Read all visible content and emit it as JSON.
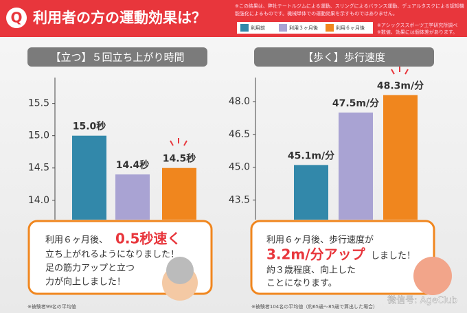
{
  "header": {
    "mark": "Q",
    "title": "利用者の方の運動効果は？",
    "notes": [
      "※この結果は、弊社テートルジムによる運動、スリングによるバランス運動、デュアルタスクによる認知機",
      "能強化によるものです。機械単体での運動効果を示すものではありません。"
    ],
    "sources": [
      "※アシックススポーツ工学研究所調べ",
      "※数値、効果には個体差があります。"
    ]
  },
  "legend": [
    {
      "name": "利用前",
      "color": "#3288aa"
    },
    {
      "name": "利用３ヶ月後",
      "color": "#a9a3d3"
    },
    {
      "name": "利用６ヶ月後",
      "color": "#f0861e"
    }
  ],
  "chart_data": [
    {
      "type": "bar",
      "title": "【立つ】５回立ち上がり時間",
      "values": [
        15.0,
        14.4,
        14.5
      ],
      "value_labels": [
        "15.0秒",
        "14.4秒",
        "14.5秒"
      ],
      "ylim": [
        13.7,
        15.9
      ],
      "yticks": [
        {
          "value": 14.0,
          "label": "14.0"
        },
        14.5,
        {
          "value": 15.0,
          "label": "15.0"
        },
        15.5
      ],
      "footnote": "※被験者99名の平均値"
    },
    {
      "type": "bar",
      "title": "【歩く】歩行速度",
      "values": [
        45.1,
        47.5,
        48.3
      ],
      "value_labels": [
        "45.1m/分",
        "47.5m/分",
        "48.3m/分"
      ],
      "ylim": [
        42.6,
        49.1
      ],
      "yticks": [
        43.5,
        {
          "value": 45.0,
          "label": "45.0"
        },
        46.5,
        {
          "value": 48.0,
          "label": "48.0"
        }
      ],
      "footnote": "※被験者104名の平均値（約65歳～85歳で算出した場合）"
    }
  ],
  "callouts": [
    {
      "lead": "利用６ヶ月後、",
      "highlight": "0.5秒速く",
      "lines": [
        "立ち上がれるようになりました！",
        "足の筋力アップと立つ",
        "力が向上しました！"
      ]
    },
    {
      "lead": "利用６ヶ月後、歩行速度が",
      "highlight": "3.2m/分アップ",
      "tail": "しました！",
      "lines": [
        "約３歳程度、向上した",
        "ことになります。"
      ]
    }
  ],
  "watermark": "微信号: AgeClub"
}
